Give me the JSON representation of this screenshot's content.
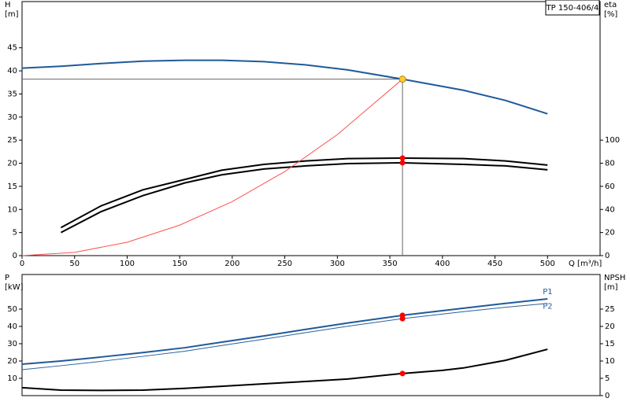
{
  "chart_data": [
    {
      "type": "line",
      "title": "TP 150-406/4",
      "xlabel": "Q [m³/h]",
      "ylabel": [
        "H",
        "[m]"
      ],
      "y2label": [
        "eta",
        "[%]"
      ],
      "xlim": [
        0,
        550
      ],
      "xticks": [
        0,
        50,
        100,
        150,
        200,
        250,
        300,
        350,
        400,
        450,
        500
      ],
      "ylim": [
        0,
        55
      ],
      "yticks": [
        0,
        5,
        10,
        15,
        20,
        25,
        30,
        35,
        40,
        45
      ],
      "y2lim": [
        0,
        220
      ],
      "y2ticks": [
        0,
        20,
        40,
        60,
        80,
        100
      ],
      "duty_point": {
        "x": 362,
        "y": 38.2,
        "color": "#ffcc33"
      },
      "series": [
        {
          "color": "#1f5a99",
          "line_width": 2,
          "x": [
            0,
            37,
            75,
            115,
            155,
            190,
            230,
            270,
            310,
            362,
            420,
            460,
            500
          ],
          "values": [
            40.6,
            41,
            41.6,
            42.1,
            42.3,
            42.3,
            42,
            41.3,
            40.2,
            38.2,
            35.8,
            33.6,
            30.7
          ]
        },
        {
          "color": "#000000",
          "line_width": 2,
          "axis": "y2",
          "marker": true,
          "x": [
            37,
            75,
            115,
            155,
            190,
            230,
            270,
            310,
            362,
            420,
            460,
            500
          ],
          "values": [
            24.3,
            43,
            57,
            66,
            74,
            79,
            82,
            84,
            84.5,
            84,
            82,
            78.4
          ]
        },
        {
          "color": "#000000",
          "line_width": 2,
          "axis": "y2",
          "marker": true,
          "x": [
            37,
            75,
            115,
            155,
            190,
            230,
            270,
            310,
            362,
            420,
            460,
            500
          ],
          "values": [
            20,
            38,
            52,
            63,
            70,
            75,
            77.7,
            79.7,
            80.4,
            79,
            77.7,
            74.3
          ]
        },
        {
          "color": "#ff5050",
          "line_width": 1,
          "x": [
            0,
            50,
            100,
            150,
            200,
            250,
            300,
            362
          ],
          "values": [
            0,
            0.7,
            2.9,
            6.6,
            11.7,
            18.2,
            26.2,
            38.2
          ]
        }
      ]
    },
    {
      "type": "line",
      "ylabel": [
        "P",
        "[kW]"
      ],
      "y2label": [
        "NPSH",
        "[m]"
      ],
      "xlim": [
        0,
        550
      ],
      "ylim": [
        0,
        70
      ],
      "yticks": [
        10,
        20,
        30,
        40,
        50
      ],
      "y2lim": [
        0,
        35
      ],
      "y2ticks": [
        0,
        5,
        10,
        15,
        20,
        25
      ],
      "series": [
        {
          "name": "P1",
          "color": "#1f5a99",
          "line_width": 2,
          "marker": true,
          "x": [
            0,
            37,
            75,
            115,
            155,
            190,
            230,
            270,
            310,
            362,
            420,
            460,
            500
          ],
          "values": [
            18.2,
            20,
            22.3,
            24.9,
            27.7,
            30.9,
            34.5,
            38.3,
            42,
            46.4,
            50.5,
            53.3,
            55.9
          ]
        },
        {
          "name": "P2",
          "color": "#2a5f9e",
          "line_width": 1,
          "marker": true,
          "x": [
            0,
            37,
            75,
            115,
            155,
            190,
            230,
            270,
            310,
            362,
            420,
            460,
            500
          ],
          "values": [
            15,
            17.3,
            19.8,
            22.7,
            25.7,
            29,
            32.6,
            36.4,
            40.1,
            44.5,
            48.5,
            51.1,
            53.3
          ]
        },
        {
          "color": "#000000",
          "line_width": 2,
          "axis": "y2",
          "marker": true,
          "x": [
            0,
            37,
            75,
            115,
            155,
            190,
            230,
            270,
            310,
            362,
            400,
            420,
            460,
            500
          ],
          "values": [
            2.3,
            1.6,
            1.5,
            1.6,
            2.1,
            2.7,
            3.4,
            4.1,
            4.8,
            6.4,
            7.3,
            8,
            10.2,
            13.4
          ]
        }
      ]
    }
  ]
}
